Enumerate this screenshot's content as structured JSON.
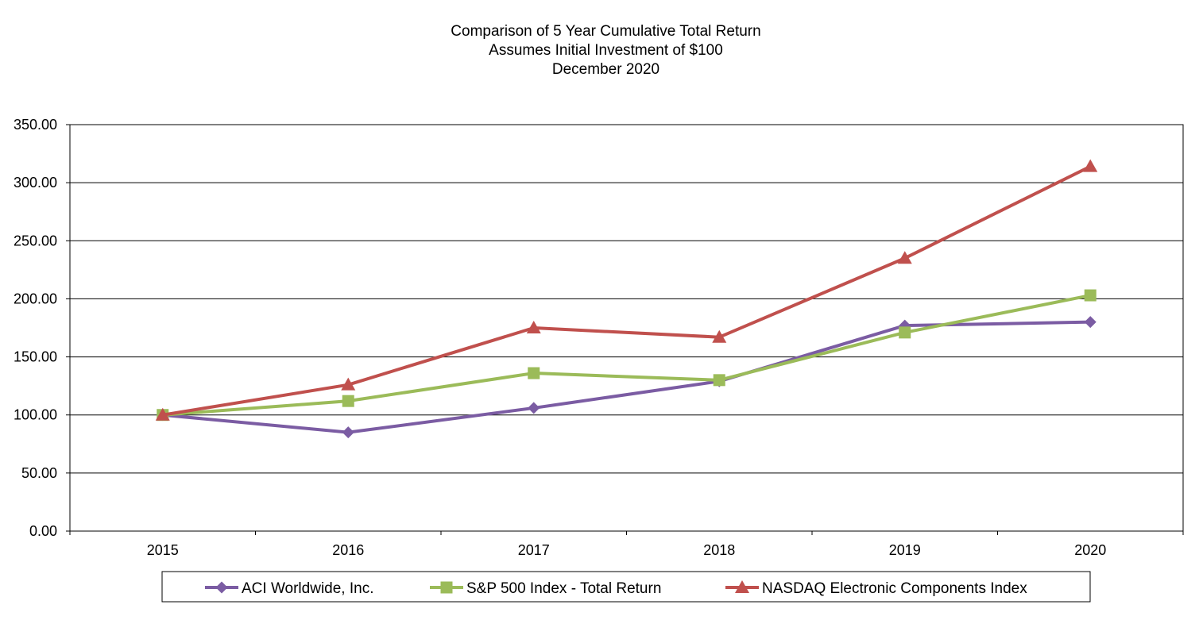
{
  "chart_data": {
    "type": "line",
    "title": "Comparison of 5 Year Cumulative Total Return",
    "subtitle_lines": [
      "Assumes Initial Investment of $100",
      "December 2020"
    ],
    "xlabel": "",
    "ylabel": "",
    "categories": [
      "2015",
      "2016",
      "2017",
      "2018",
      "2019",
      "2020"
    ],
    "ylim": [
      0,
      350
    ],
    "ytick_step": 50,
    "ytick_labels": [
      "0.00",
      "50.00",
      "100.00",
      "150.00",
      "200.00",
      "250.00",
      "300.00",
      "350.00"
    ],
    "grid": true,
    "legend_position": "bottom",
    "series": [
      {
        "name": "ACI Worldwide, Inc.",
        "color": "#7B5CA3",
        "marker": "diamond",
        "values": [
          100,
          85,
          106,
          129,
          177,
          180
        ]
      },
      {
        "name": "S&P 500 Index - Total Return",
        "color": "#9BBB59",
        "marker": "square",
        "values": [
          100,
          112,
          136,
          130,
          171,
          203
        ]
      },
      {
        "name": "NASDAQ Electronic Components Index",
        "color": "#C0504D",
        "marker": "triangle",
        "values": [
          100,
          126,
          175,
          167,
          235,
          314
        ]
      }
    ]
  }
}
